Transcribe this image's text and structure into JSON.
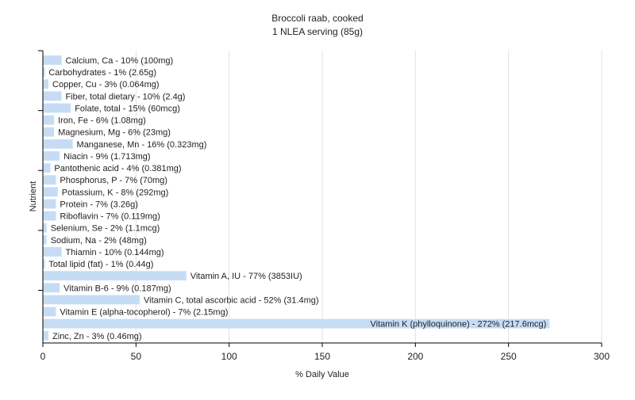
{
  "chart_data": {
    "type": "bar",
    "orientation": "horizontal",
    "title": "Broccoli raab, cooked",
    "subtitle": "1 NLEA serving (85g)",
    "xlabel": "% Daily Value",
    "ylabel": "Nutrient",
    "xlim": [
      0,
      300
    ],
    "xticks": [
      0,
      50,
      100,
      150,
      200,
      250,
      300
    ],
    "grid": true,
    "bar_color": "#c6dcf5",
    "categories": [
      "Calcium, Ca",
      "Carbohydrates",
      "Copper, Cu",
      "Fiber, total dietary",
      "Folate, total",
      "Iron, Fe",
      "Magnesium, Mg",
      "Manganese, Mn",
      "Niacin",
      "Pantothenic acid",
      "Phosphorus, P",
      "Potassium, K",
      "Protein",
      "Riboflavin",
      "Selenium, Se",
      "Sodium, Na",
      "Thiamin",
      "Total lipid (fat)",
      "Vitamin A, IU",
      "Vitamin B-6",
      "Vitamin C, total ascorbic acid",
      "Vitamin E (alpha-tocopherol)",
      "Vitamin K (phylloquinone)",
      "Zinc, Zn"
    ],
    "values": [
      10,
      1,
      3,
      10,
      15,
      6,
      6,
      16,
      9,
      4,
      7,
      8,
      7,
      7,
      2,
      2,
      10,
      1,
      77,
      9,
      52,
      7,
      272,
      3
    ],
    "labels": [
      "Calcium, Ca - 10% (100mg)",
      "Carbohydrates - 1% (2.65g)",
      "Copper, Cu - 3% (0.064mg)",
      "Fiber, total dietary - 10% (2.4g)",
      "Folate, total - 15% (60mcg)",
      "Iron, Fe - 6% (1.08mg)",
      "Magnesium, Mg - 6% (23mg)",
      "Manganese, Mn - 16% (0.323mg)",
      "Niacin - 9% (1.713mg)",
      "Pantothenic acid - 4% (0.381mg)",
      "Phosphorus, P - 7% (70mg)",
      "Potassium, K - 8% (292mg)",
      "Protein - 7% (3.26g)",
      "Riboflavin - 7% (0.119mg)",
      "Selenium, Se - 2% (1.1mcg)",
      "Sodium, Na - 2% (48mg)",
      "Thiamin - 10% (0.144mg)",
      "Total lipid (fat) - 1% (0.44g)",
      "Vitamin A, IU - 77% (3853IU)",
      "Vitamin B-6 - 9% (0.187mg)",
      "Vitamin C, total ascorbic acid - 52% (31.4mg)",
      "Vitamin E (alpha-tocopherol) - 7% (2.15mg)",
      "Vitamin K (phylloquinone) - 272% (217.6mcg)",
      "Zinc, Zn - 3% (0.46mg)"
    ]
  }
}
